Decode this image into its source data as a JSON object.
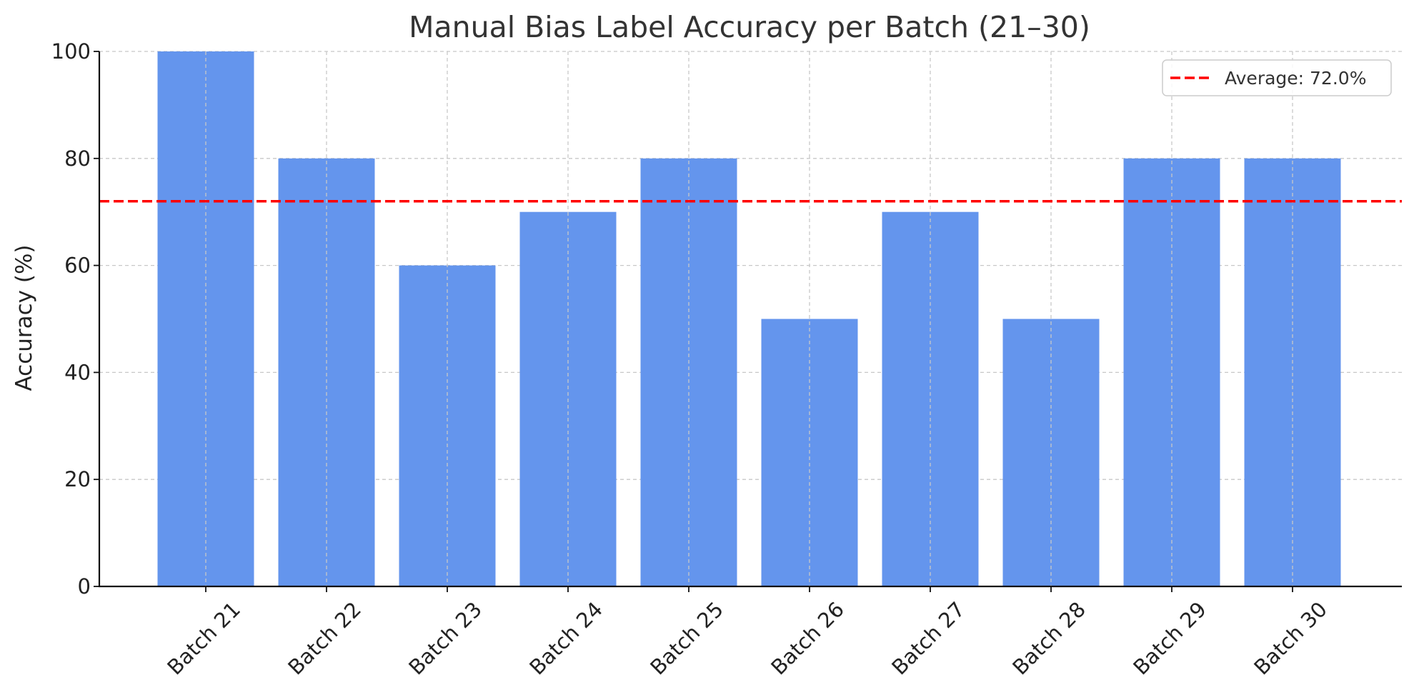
{
  "chart_data": {
    "type": "bar",
    "title": "Manual Bias Label Accuracy per Batch (21–30)",
    "xlabel": "",
    "ylabel": "Accuracy (%)",
    "categories": [
      "Batch 21",
      "Batch 22",
      "Batch 23",
      "Batch 24",
      "Batch 25",
      "Batch 26",
      "Batch 27",
      "Batch 28",
      "Batch 29",
      "Batch 30"
    ],
    "values": [
      100,
      80,
      60,
      70,
      80,
      50,
      70,
      50,
      80,
      80
    ],
    "ylim": [
      0,
      100
    ],
    "yticks": [
      0,
      20,
      40,
      60,
      80,
      100
    ],
    "grid": true,
    "bar_color": "#6495ED",
    "reference_line": {
      "value": 72.0,
      "label": "Average: 72.0%",
      "color": "#FF0000",
      "style": "dashed"
    },
    "legend": {
      "position": "top-right",
      "entries": [
        "Average: 72.0%"
      ]
    }
  }
}
